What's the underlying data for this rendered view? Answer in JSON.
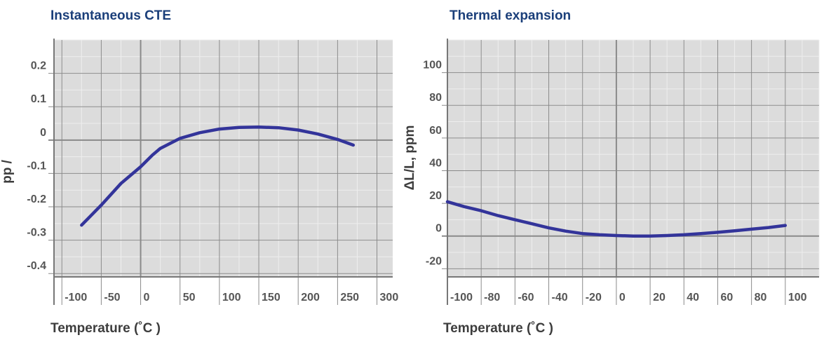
{
  "chart_data": [
    {
      "type": "line",
      "title": "Instantaneous CTE",
      "xlabel": "Temperature (˚C )",
      "ylabel": "pp  /",
      "xlim": [
        -110,
        320
      ],
      "ylim": [
        -0.41,
        0.3
      ],
      "x_ticks": [
        -100,
        -50,
        0,
        50,
        100,
        150,
        200,
        250,
        300
      ],
      "x_tick_labels": [
        "-100",
        "-50",
        "0",
        "50",
        "100",
        "150",
        "200",
        "250",
        "300"
      ],
      "y_ticks": [
        0.2,
        0.1,
        0,
        -0.1,
        -0.2,
        -0.3,
        -0.4
      ],
      "y_tick_labels": [
        "0.2",
        "0.1",
        "0",
        "-0.1",
        "-0.2",
        "-0.3",
        "-0.4"
      ],
      "grid": true,
      "line_color": "#33349a",
      "series": [
        {
          "x": [
            -75,
            -50,
            -25,
            0,
            15,
            25,
            50,
            75,
            100,
            125,
            150,
            175,
            200,
            225,
            250,
            270
          ],
          "y": [
            -0.255,
            -0.195,
            -0.13,
            -0.08,
            -0.045,
            -0.025,
            0.005,
            0.022,
            0.033,
            0.038,
            0.039,
            0.037,
            0.03,
            0.018,
            0.002,
            -0.015
          ]
        }
      ]
    },
    {
      "type": "line",
      "title": "Thermal expansion",
      "xlabel": "Temperature (˚C )",
      "ylabel": "ΔL/L, ppm",
      "xlim": [
        -100,
        120
      ],
      "ylim": [
        -25,
        120
      ],
      "x_ticks": [
        -100,
        -80,
        -60,
        -40,
        -20,
        0,
        20,
        40,
        60,
        80,
        100
      ],
      "x_tick_labels": [
        "-100",
        "-80",
        "-60",
        "-40",
        "-20",
        "0",
        "20",
        "40",
        "60",
        "80",
        "100"
      ],
      "y_ticks": [
        100,
        80,
        60,
        40,
        20,
        0,
        -20
      ],
      "y_tick_labels": [
        "100",
        "80",
        "60",
        "40",
        "20",
        "0",
        "-20"
      ],
      "grid": true,
      "line_color": "#33349a",
      "series": [
        {
          "x": [
            -100,
            -90,
            -80,
            -70,
            -60,
            -50,
            -40,
            -30,
            -20,
            -10,
            0,
            10,
            20,
            30,
            40,
            50,
            60,
            70,
            80,
            90,
            100
          ],
          "y": [
            21,
            18,
            15.5,
            12.5,
            10,
            7.5,
            5,
            3,
            1.5,
            0.8,
            0.3,
            0,
            0,
            0.3,
            0.8,
            1.5,
            2.3,
            3.2,
            4.2,
            5.2,
            6.5
          ]
        }
      ]
    }
  ]
}
